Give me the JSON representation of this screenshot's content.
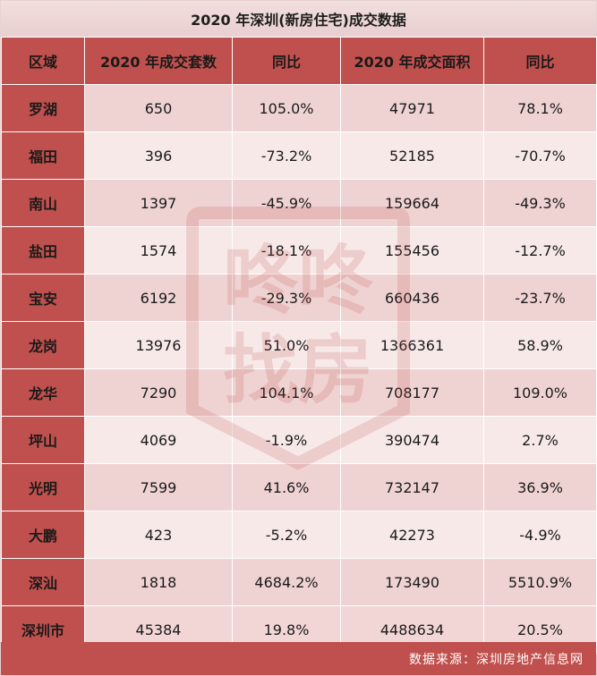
{
  "title": "2020 年深圳(新房住宅)成交数据",
  "headers": [
    "区域",
    "2020 年成交套数",
    "同比",
    "2020 年成交面积",
    "同比"
  ],
  "rows": [
    {
      "region": "罗湖",
      "units": "650",
      "units_yoy": "105.0%",
      "area": "47971",
      "area_yoy": "78.1%"
    },
    {
      "region": "福田",
      "units": "396",
      "units_yoy": "-73.2%",
      "area": "52185",
      "area_yoy": "-70.7%"
    },
    {
      "region": "南山",
      "units": "1397",
      "units_yoy": "-45.9%",
      "area": "159664",
      "area_yoy": "-49.3%"
    },
    {
      "region": "盐田",
      "units": "1574",
      "units_yoy": "-18.1%",
      "area": "155456",
      "area_yoy": "-12.7%"
    },
    {
      "region": "宝安",
      "units": "6192",
      "units_yoy": "-29.3%",
      "area": "660436",
      "area_yoy": "-23.7%"
    },
    {
      "region": "龙岗",
      "units": "13976",
      "units_yoy": "51.0%",
      "area": "1366361",
      "area_yoy": "58.9%"
    },
    {
      "region": "龙华",
      "units": "7290",
      "units_yoy": "104.1%",
      "area": "708177",
      "area_yoy": "109.0%"
    },
    {
      "region": "坪山",
      "units": "4069",
      "units_yoy": "-1.9%",
      "area": "390474",
      "area_yoy": "2.7%"
    },
    {
      "region": "光明",
      "units": "7599",
      "units_yoy": "41.6%",
      "area": "732147",
      "area_yoy": "36.9%"
    },
    {
      "region": "大鹏",
      "units": "423",
      "units_yoy": "-5.2%",
      "area": "42273",
      "area_yoy": "-4.9%"
    },
    {
      "region": "深汕",
      "units": "1818",
      "units_yoy": "4684.2%",
      "area": "173490",
      "area_yoy": "5510.9%"
    },
    {
      "region": "深圳市",
      "units": "45384",
      "units_yoy": "19.8%",
      "area": "4488634",
      "area_yoy": "20.5%"
    }
  ],
  "footer": "数据来源：深圳房地产信息网",
  "watermark": {
    "line1": "咚咚",
    "line2": "找房",
    "color": "#c0504d",
    "icon": "house-logo-icon"
  }
}
